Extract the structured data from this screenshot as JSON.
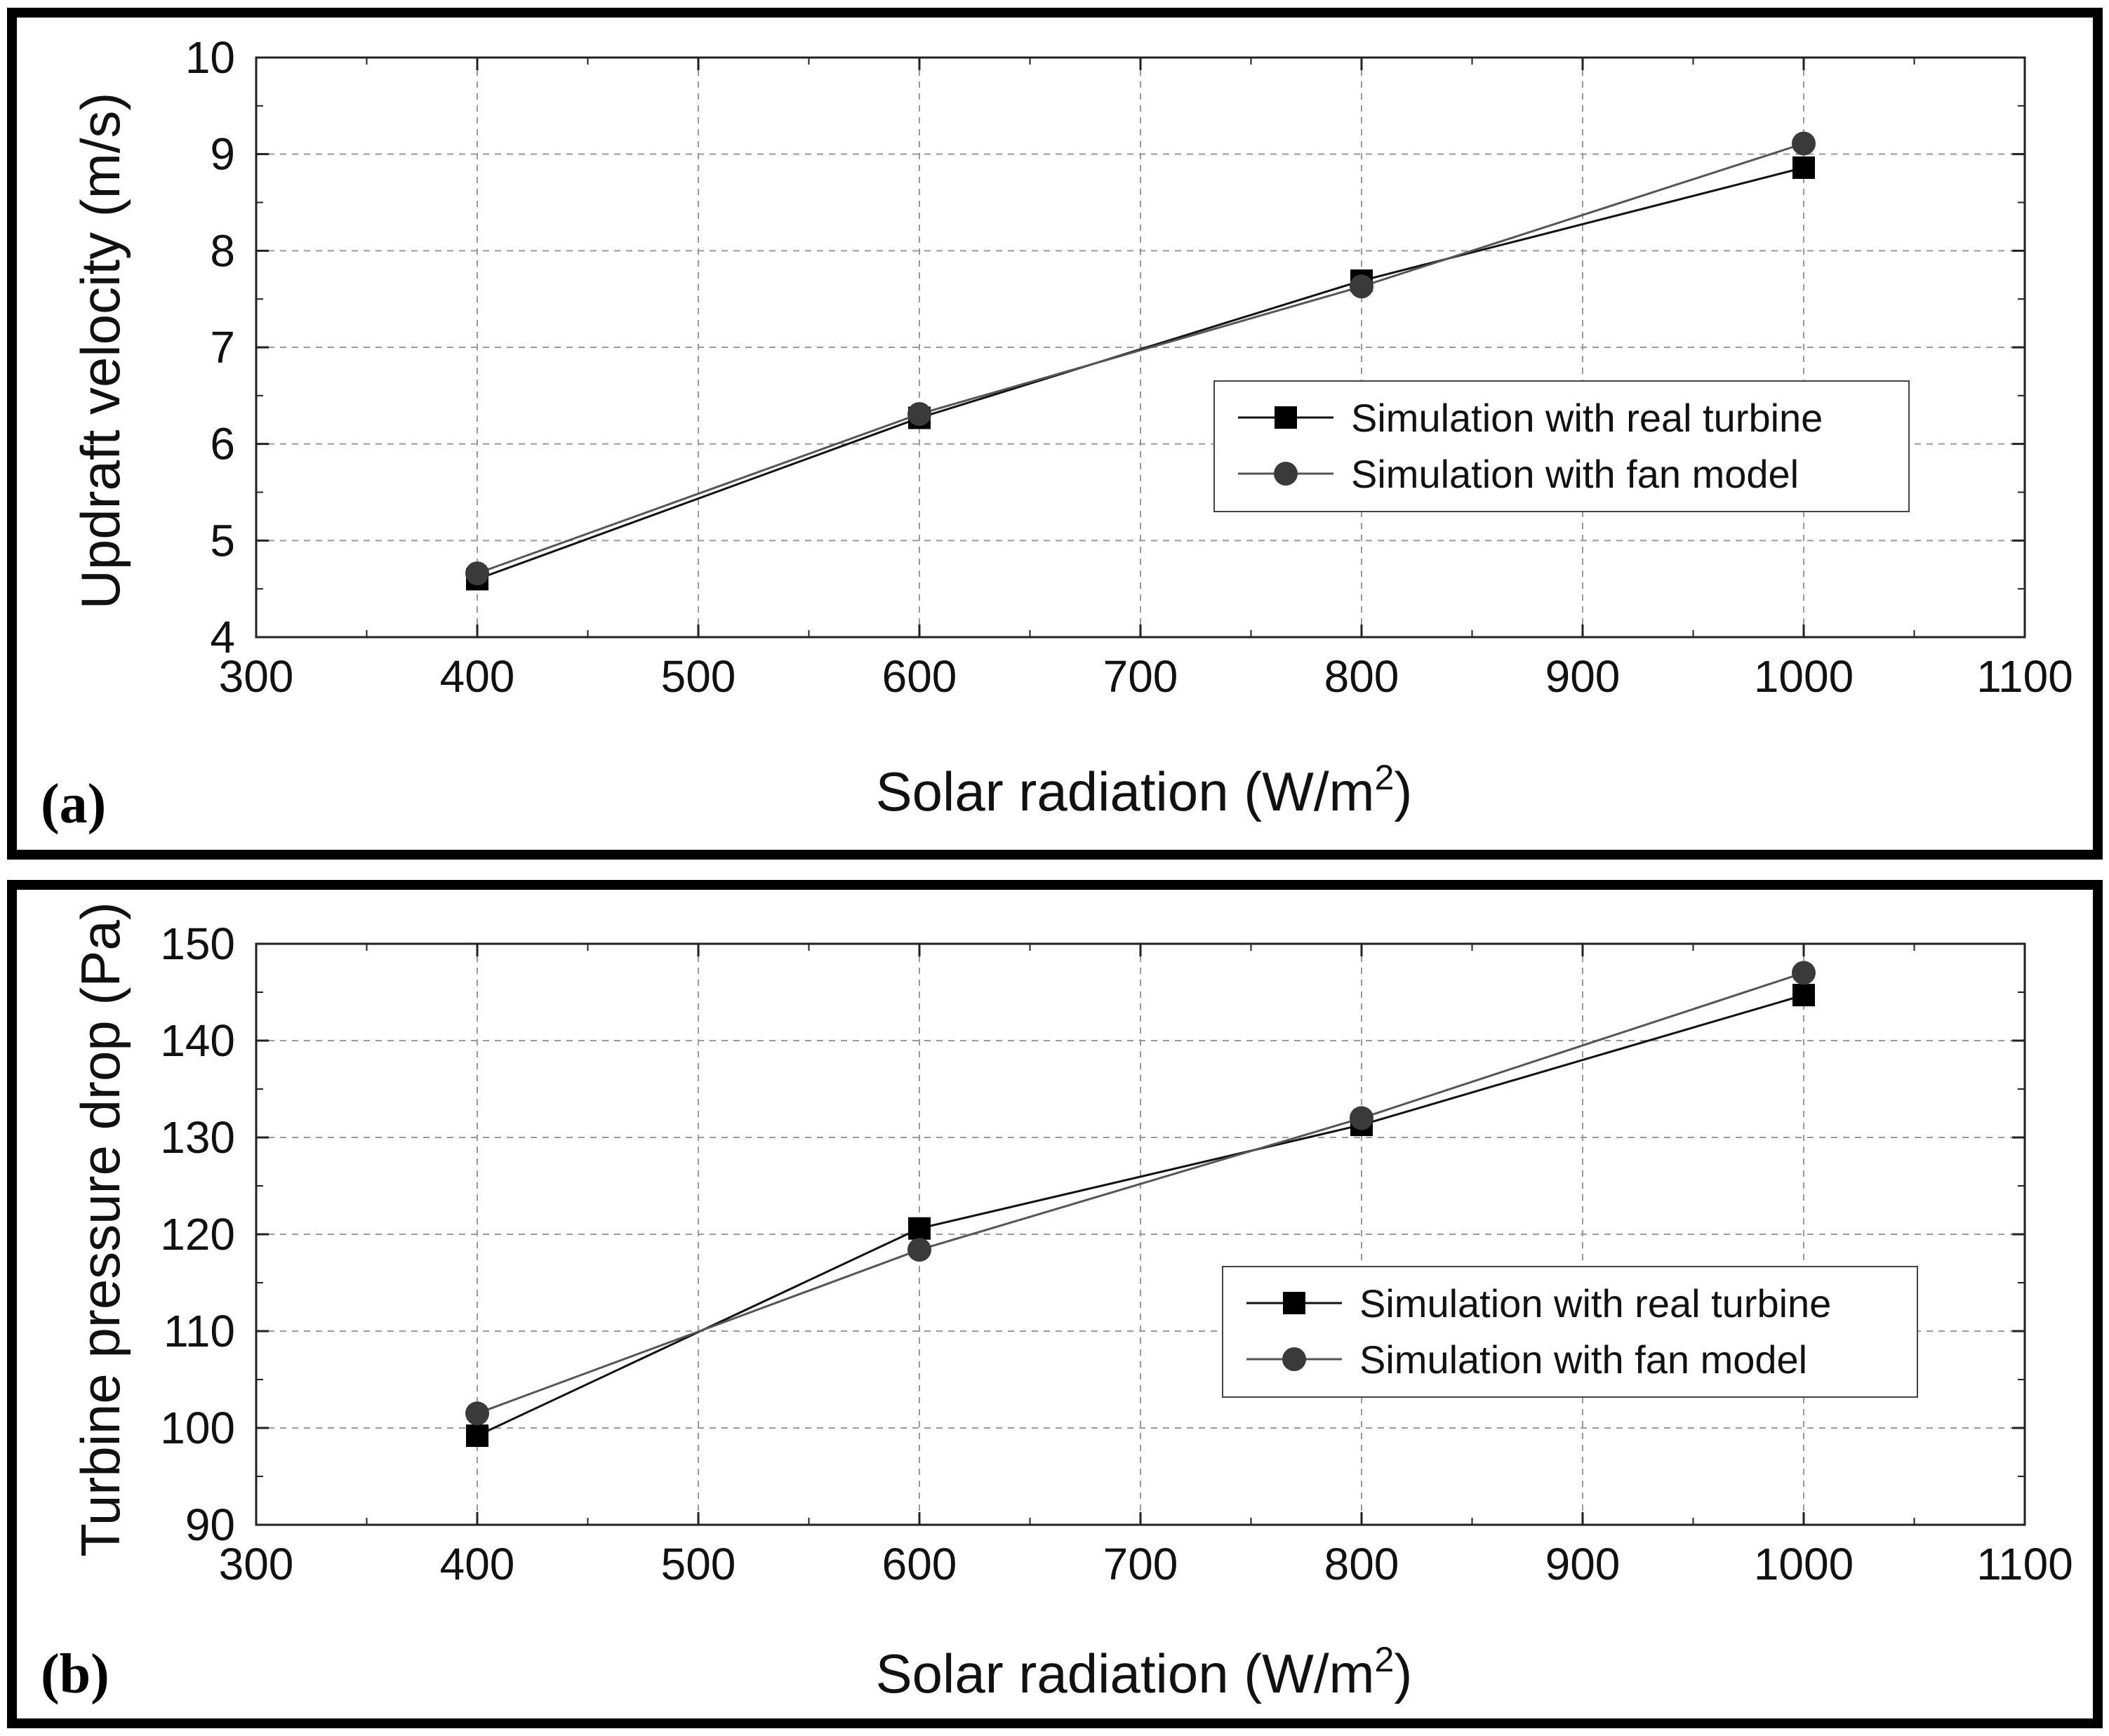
{
  "chart_data": [
    {
      "type": "line",
      "panel_label": "(a)",
      "xlabel": "Solar radiation (W/m",
      "xlabel_superscript": "2",
      "xlabel_suffix": ")",
      "ylabel": "Updraft velocity (m/s)",
      "xlim": [
        300,
        1100
      ],
      "ylim": [
        4,
        10
      ],
      "x_ticks": [
        300,
        400,
        500,
        600,
        700,
        800,
        900,
        1000,
        1100
      ],
      "y_ticks": [
        4,
        5,
        6,
        7,
        8,
        9,
        10
      ],
      "grid": true,
      "legend_position": "center-right",
      "series": [
        {
          "name": "Simulation with real turbine",
          "marker": "square",
          "color": "#000000",
          "x": [
            400,
            600,
            800,
            1000
          ],
          "values": [
            4.6,
            6.27,
            7.69,
            8.86
          ]
        },
        {
          "name": "Simulation with fan model",
          "marker": "circle",
          "color": "#3a3a3a",
          "x": [
            400,
            600,
            800,
            1000
          ],
          "values": [
            4.66,
            6.31,
            7.63,
            9.11
          ]
        }
      ]
    },
    {
      "type": "line",
      "panel_label": "(b)",
      "xlabel": "Solar radiation (W/m",
      "xlabel_superscript": "2",
      "xlabel_suffix": ")",
      "ylabel": "Turbine pressure drop (Pa)",
      "xlim": [
        300,
        1100
      ],
      "ylim": [
        90,
        150
      ],
      "x_ticks": [
        300,
        400,
        500,
        600,
        700,
        800,
        900,
        1000,
        1100
      ],
      "y_ticks": [
        90,
        100,
        110,
        120,
        130,
        140,
        150
      ],
      "grid": true,
      "legend_position": "center-right",
      "series": [
        {
          "name": "Simulation with real turbine",
          "marker": "square",
          "color": "#000000",
          "x": [
            400,
            600,
            800,
            1000
          ],
          "values": [
            99.2,
            120.6,
            131.3,
            144.7
          ]
        },
        {
          "name": "Simulation with fan model",
          "marker": "circle",
          "color": "#3a3a3a",
          "x": [
            400,
            600,
            800,
            1000
          ],
          "values": [
            101.5,
            118.4,
            132.0,
            147.0
          ]
        }
      ]
    }
  ]
}
